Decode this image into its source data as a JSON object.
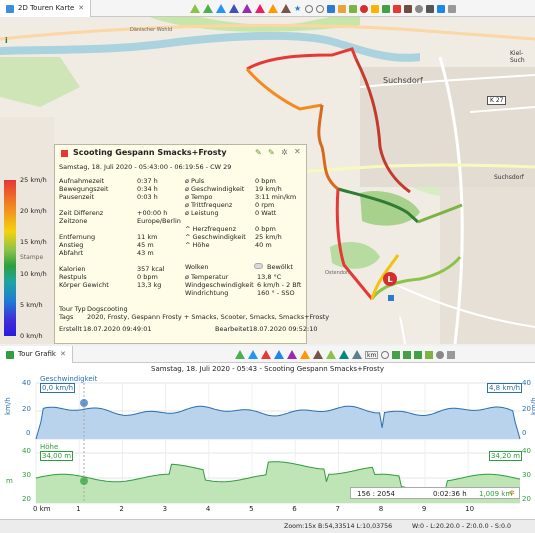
{
  "map_tab": {
    "title": "2D Touren Karte",
    "close": "✕"
  },
  "map_labels": {
    "suchsdorf": "Suchsdorf",
    "suchsdorf2": "Suchsdorf",
    "k27": "K 27",
    "kielsuch": "Kiel-Such",
    "daenisch": "Dänischer Wohld",
    "stampe": "Stampe",
    "ostendorf": "Ostendorf"
  },
  "legend": {
    "unit": "km/h",
    "labels": [
      "25 km/h",
      "20 km/h",
      "15 km/h",
      "10 km/h",
      "5 km/h",
      "0 km/h"
    ]
  },
  "popup": {
    "title": "Scooting Gespann Smacks+Frosty",
    "date": "Samstag, 18. Juli 2020 - 05:43:00 - 06:19:56 - CW 29",
    "left": [
      [
        "Aufnahmezeit",
        "0:37 h"
      ],
      [
        "Bewegungszeit",
        "0:34 h"
      ],
      [
        "Pausenzeit",
        "0:03 h"
      ],
      [
        "",
        ""
      ],
      [
        "Zeit Differenz",
        "+00:00 h"
      ],
      [
        "Zeitzone",
        "Europe/Berlin"
      ],
      [
        "",
        ""
      ],
      [
        "Entfernung",
        "11 km"
      ],
      [
        "Anstieg",
        "45 m"
      ],
      [
        "Abfahrt",
        "43 m"
      ],
      [
        "",
        ""
      ],
      [
        "Kalorien",
        "357 kcal"
      ],
      [
        "Restpuls",
        "0 bpm"
      ],
      [
        "Körper Gewicht",
        "13,3 kg"
      ]
    ],
    "right": [
      [
        "ø Puls",
        "0 bpm"
      ],
      [
        "ø Geschwindigkeit",
        "19 km/h"
      ],
      [
        "ø Tempo",
        "3:11 min/km"
      ],
      [
        "ø Trittfrequenz",
        "0 rpm"
      ],
      [
        "ø Leistung",
        "0 Watt"
      ],
      [
        "",
        ""
      ],
      [
        "^ Herzfrequenz",
        "0 bpm"
      ],
      [
        "^ Geschwindigkeit",
        "25 km/h"
      ],
      [
        "^ Höhe",
        "40 m"
      ]
    ],
    "wolken": "Wolken",
    "bewoelkt": "Bewölkt",
    "weather": [
      [
        "ø Temperatur",
        "13,8 °C"
      ],
      [
        "Windgeschwindigkeit",
        "6 km/h - 2 Bft"
      ],
      [
        "Windrichtung",
        "160 ° - SSO"
      ]
    ],
    "tourtyp_label": "Tour Typ",
    "tourtyp": "Dogscooting",
    "tags_label": "Tags",
    "tags": "2020, Frosty, Gespann Frosty + Smacks, Scooter, Smacks, Smacks+Frosty",
    "erstellt_label": "Erstellt",
    "erstellt": "18.07.2020 09:49:01",
    "bearbeitet_label": "Bearbeitet",
    "bearbeitet": "18.07.2020 09:52:10"
  },
  "graph_tab": {
    "title": "Tour Grafik",
    "close": "✕",
    "km_button": "km"
  },
  "graph": {
    "title": "Samstag, 18. Juli 2020 - 05:43 - Scooting Gespann Smacks+Frosty",
    "speed_label": "Geschwindigkeit",
    "speed_value_left": "0,0 km/h",
    "speed_value_right": "4,8 km/h",
    "speed_unit": "km/h",
    "height_label": "Höhe",
    "height_value_left": "34,00 m",
    "height_value_right": "34,20 m",
    "height_unit": "m",
    "speed_ticks": [
      "40",
      "20",
      "0"
    ],
    "height_ticks": [
      "40",
      "30",
      "20"
    ],
    "x_ticks": [
      "0 km",
      "1",
      "2",
      "3",
      "4",
      "5",
      "6",
      "7",
      "8",
      "9",
      "10"
    ],
    "hover_index": "156 : 2054",
    "hover_time": "0:02:36 h",
    "hover_dist": "1,009 km",
    "colors": {
      "speed": "#2a6fb0",
      "speed_fill": "#b9d3ec",
      "height": "#2e9e3e",
      "height_fill": "#bfe4b5"
    }
  },
  "status": {
    "zoom": "Zoom:15x",
    "coords": "B:54,33514  L:10,03756",
    "range": "W:0 - L:20.20.0 - Z:0.0.0 - S:0.0"
  }
}
